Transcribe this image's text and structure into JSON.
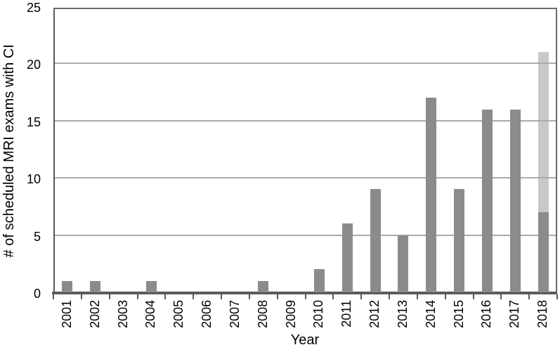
{
  "figure": {
    "background": "#ffffff",
    "colors": {
      "bar_dark": "#8b8b8b",
      "bar_light": "#c8c8c8",
      "gridline": "#ababab",
      "plot_border": "#6b6b6b",
      "axis_line": "#5a5a5a",
      "text": "#000000"
    }
  },
  "chart_data": {
    "type": "bar",
    "stacked": true,
    "title": "",
    "xlabel": "Year",
    "ylabel": "# of scheduled MRI exams with CI",
    "ylim": [
      0,
      25
    ],
    "ytick_step": 5,
    "ytick_labels": [
      "0",
      "5",
      "10",
      "15",
      "20",
      "25"
    ],
    "grid": true,
    "legend_position": "none",
    "categories": [
      "2001",
      "2002",
      "2003",
      "2004",
      "2005",
      "2006",
      "2007",
      "2008",
      "2009",
      "2010",
      "2011",
      "2012",
      "2013",
      "2014",
      "2015",
      "2016",
      "2017",
      "2018"
    ],
    "series": [
      {
        "name": "dark-gray-segment",
        "color_key": "bar_dark",
        "values": [
          1,
          1,
          0,
          1,
          0,
          0,
          0,
          1,
          0,
          2,
          6,
          9,
          5,
          17,
          9,
          16,
          16,
          7
        ]
      },
      {
        "name": "light-gray-segment",
        "color_key": "bar_light",
        "values": [
          0,
          0,
          0,
          0,
          0,
          0,
          0,
          0,
          0,
          0,
          0,
          0,
          0,
          0,
          0,
          0,
          0,
          14
        ]
      }
    ]
  }
}
